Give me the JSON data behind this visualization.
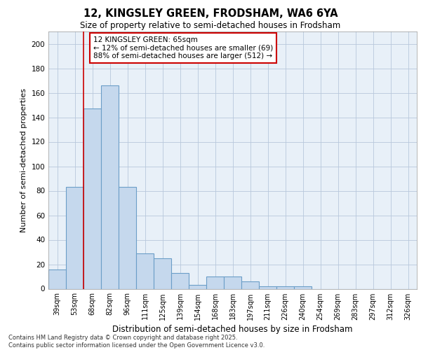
{
  "title_line1": "12, KINGSLEY GREEN, FRODSHAM, WA6 6YA",
  "title_line2": "Size of property relative to semi-detached houses in Frodsham",
  "xlabel": "Distribution of semi-detached houses by size in Frodsham",
  "ylabel": "Number of semi-detached properties",
  "categories": [
    "39sqm",
    "53sqm",
    "68sqm",
    "82sqm",
    "96sqm",
    "111sqm",
    "125sqm",
    "139sqm",
    "154sqm",
    "168sqm",
    "183sqm",
    "197sqm",
    "211sqm",
    "226sqm",
    "240sqm",
    "254sqm",
    "269sqm",
    "283sqm",
    "297sqm",
    "312sqm",
    "326sqm"
  ],
  "values": [
    16,
    83,
    147,
    166,
    83,
    29,
    25,
    13,
    3,
    10,
    10,
    6,
    2,
    2,
    2,
    0,
    0,
    0,
    0,
    0,
    0
  ],
  "bar_color": "#c5d8ed",
  "bar_edge_color": "#6b9ec8",
  "grid_color": "#b8c8dc",
  "background_color": "#e8f0f8",
  "vline_color": "#cc0000",
  "vline_pos": 2,
  "annotation_title": "12 KINGSLEY GREEN: 65sqm",
  "annotation_line1": "← 12% of semi-detached houses are smaller (69)",
  "annotation_line2": "88% of semi-detached houses are larger (512) →",
  "annotation_box_color": "#cc0000",
  "footer_line1": "Contains HM Land Registry data © Crown copyright and database right 2025.",
  "footer_line2": "Contains public sector information licensed under the Open Government Licence v3.0.",
  "ylim": [
    0,
    210
  ],
  "yticks": [
    0,
    20,
    40,
    60,
    80,
    100,
    120,
    140,
    160,
    180,
    200
  ]
}
